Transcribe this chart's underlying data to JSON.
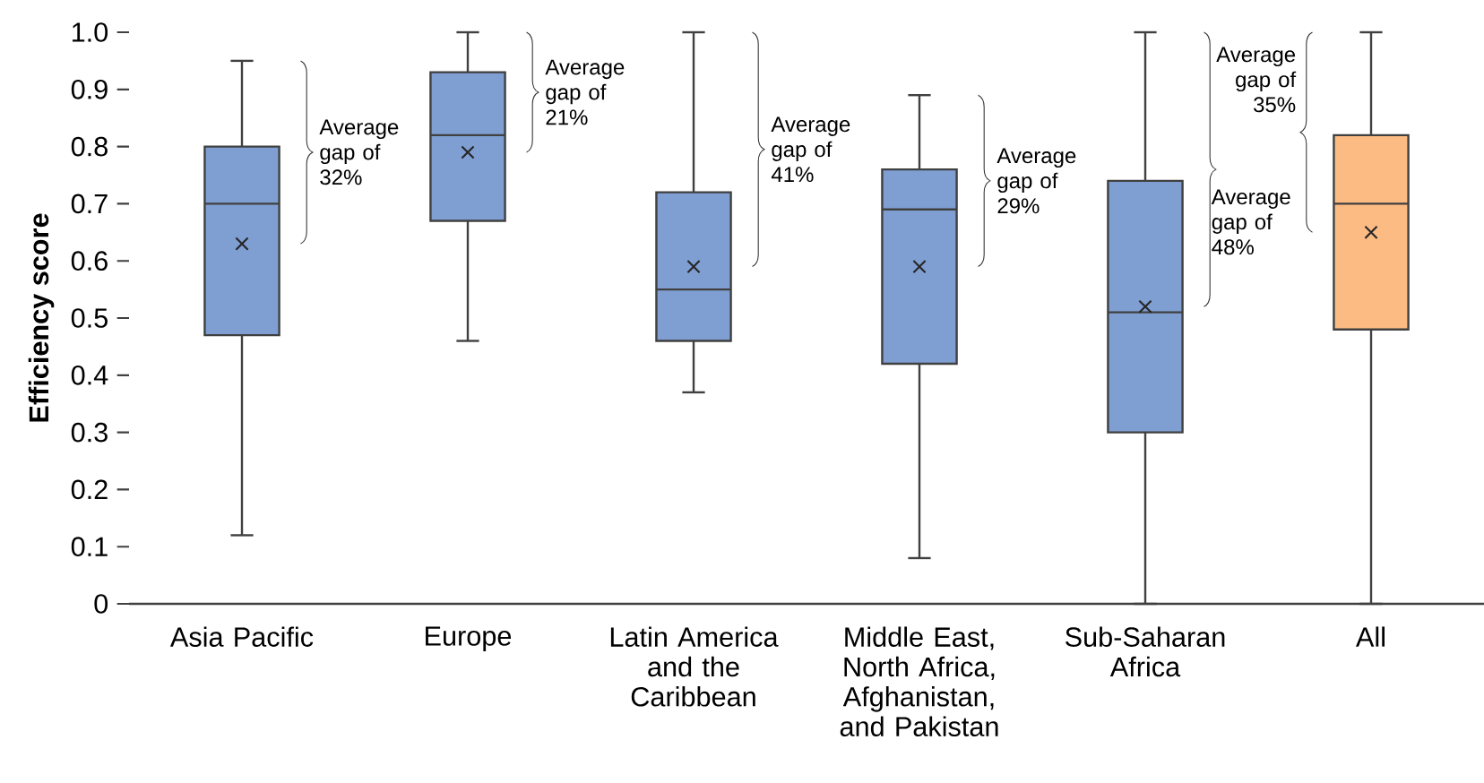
{
  "chart_data": {
    "type": "box",
    "ylabel": "Efficiency score",
    "categories": [
      "Asia Pacific",
      "Europe",
      "Latin America and the Caribbean",
      "Middle East, North Africa, Afghanistan, and Pakistan",
      "Sub-Saharan Africa",
      "All"
    ],
    "colors": [
      "#7f9fd3",
      "#7f9fd3",
      "#7f9fd3",
      "#7f9fd3",
      "#7f9fd3",
      "#fdbb84"
    ],
    "boxes": [
      {
        "low": 0.12,
        "q1": 0.47,
        "median": 0.7,
        "q3": 0.8,
        "high": 0.95,
        "mean": 0.63
      },
      {
        "low": 0.46,
        "q1": 0.67,
        "median": 0.82,
        "q3": 0.93,
        "high": 1.0,
        "mean": 0.79
      },
      {
        "low": 0.37,
        "q1": 0.46,
        "median": 0.55,
        "q3": 0.72,
        "high": 1.0,
        "mean": 0.59
      },
      {
        "low": 0.08,
        "q1": 0.42,
        "median": 0.69,
        "q3": 0.76,
        "high": 0.89,
        "mean": 0.59
      },
      {
        "low": 0.0,
        "q1": 0.3,
        "median": 0.51,
        "q3": 0.74,
        "high": 1.0,
        "mean": 0.52
      },
      {
        "low": 0.0,
        "q1": 0.48,
        "median": 0.7,
        "q3": 0.82,
        "high": 1.0,
        "mean": 0.65
      }
    ],
    "ylim": [
      0,
      1
    ],
    "yticks": [
      0,
      0.1,
      0.2,
      0.3,
      0.4,
      0.5,
      0.6,
      0.7,
      0.8,
      0.9,
      {
        "value": 1,
        "label": "1.0"
      }
    ],
    "marker": "cross",
    "annotations": [
      "Average gap of 32%",
      "Average gap of 21%",
      "Average gap of 41%",
      "Average gap of 29%",
      "Average gap of 48%",
      "Average gap of 35%"
    ]
  }
}
